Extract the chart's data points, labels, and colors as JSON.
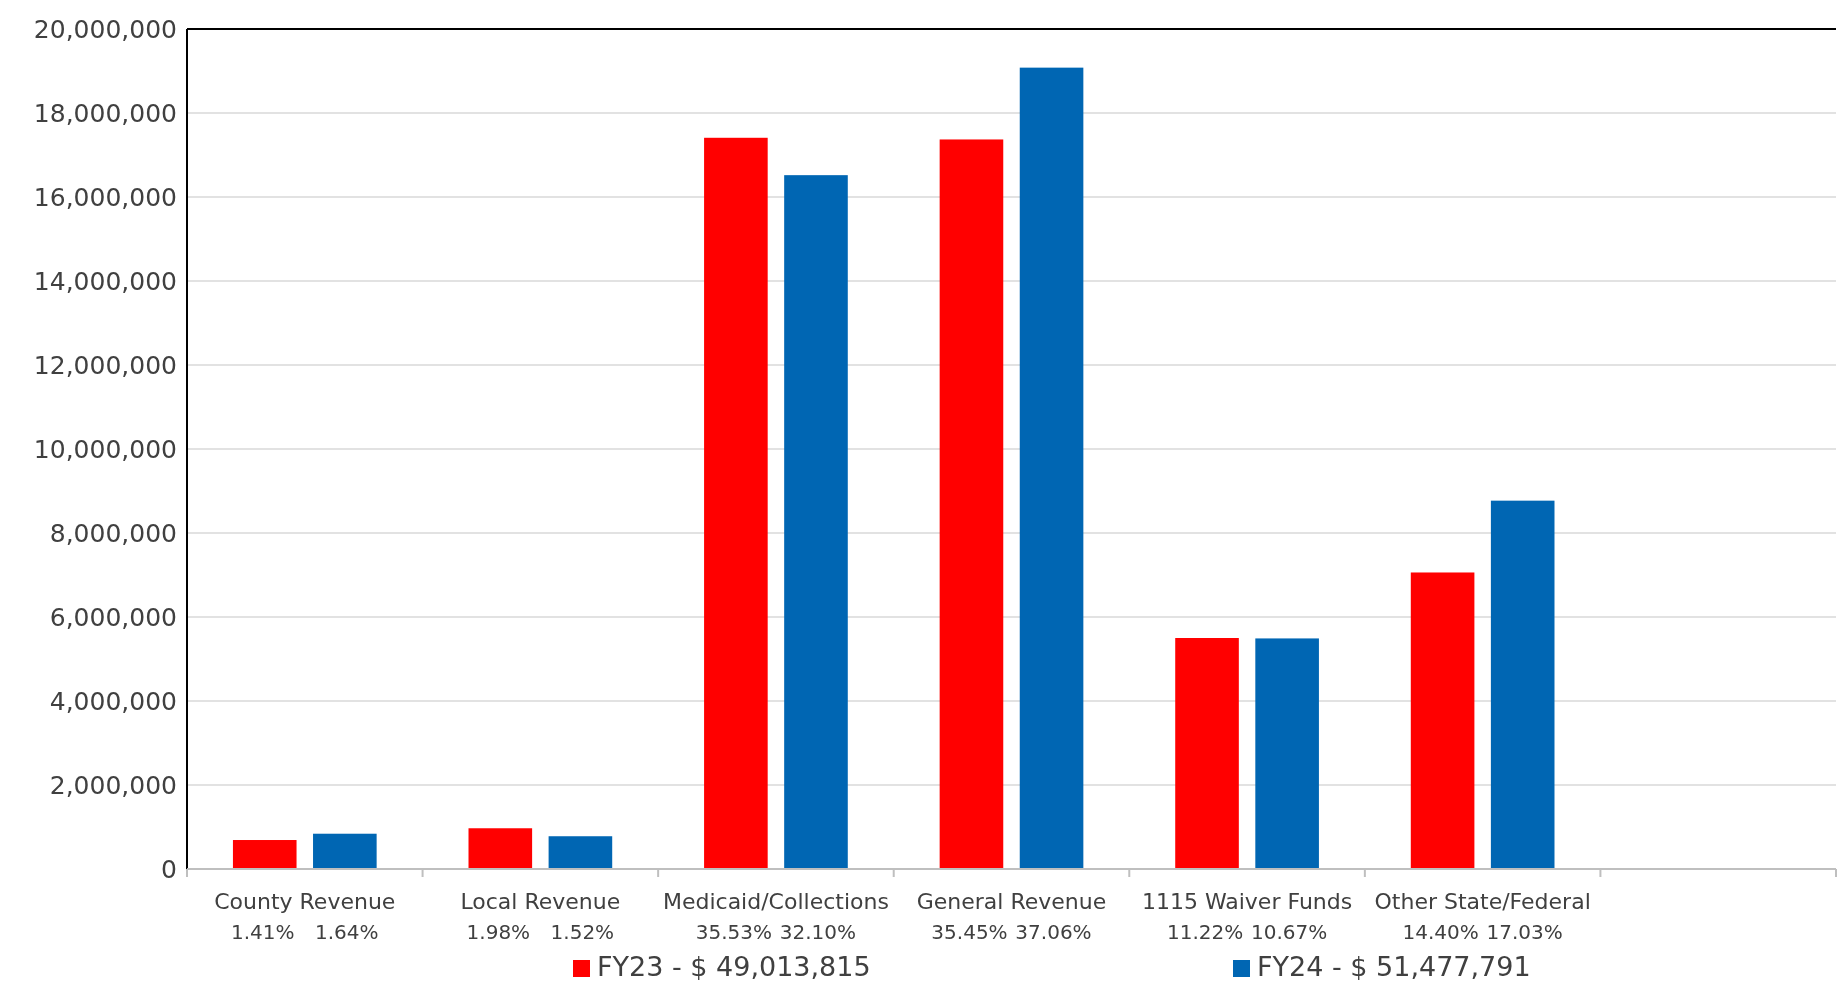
{
  "chart_data": {
    "type": "bar",
    "categories": [
      "County Revenue",
      "Local Revenue",
      "Medicaid/Collections",
      "General Revenue",
      "1115 Waiver Funds",
      "Other State/Federal",
      null
    ],
    "series": [
      {
        "name": "FY23 - $ 49,013,815",
        "color": "#ff0000",
        "values": [
          690000,
          970000,
          17410000,
          17370000,
          5500000,
          7060000,
          null
        ]
      },
      {
        "name": "FY24 - $ 51,477,791",
        "color": "#0066b3",
        "values": [
          840000,
          780000,
          16520000,
          19080000,
          5490000,
          8770000,
          null
        ]
      }
    ],
    "ylim": [
      0,
      20000000
    ],
    "yticks": [
      {
        "value": 0,
        "label": "0"
      },
      {
        "value": 2000000,
        "label": "2,000,000"
      },
      {
        "value": 4000000,
        "label": "4,000,000"
      },
      {
        "value": 6000000,
        "label": "6,000,000"
      },
      {
        "value": 8000000,
        "label": "8,000,000"
      },
      {
        "value": 10000000,
        "label": "10,000,000"
      },
      {
        "value": 12000000,
        "label": "12,000,000"
      },
      {
        "value": 14000000,
        "label": "14,000,000"
      },
      {
        "value": 16000000,
        "label": "16,000,000"
      },
      {
        "value": 18000000,
        "label": "18,000,000"
      },
      {
        "value": 20000000,
        "label": "20,000,000"
      }
    ],
    "grid": "y",
    "legend": "bottom",
    "annotations": [
      "1.41%",
      "1.64%",
      "1.98%",
      "1.52%",
      "35.53%",
      "32.10%",
      "35.45%",
      "37.06%",
      "11.22%",
      "10.67%",
      "14.40%",
      "17.03%"
    ]
  }
}
